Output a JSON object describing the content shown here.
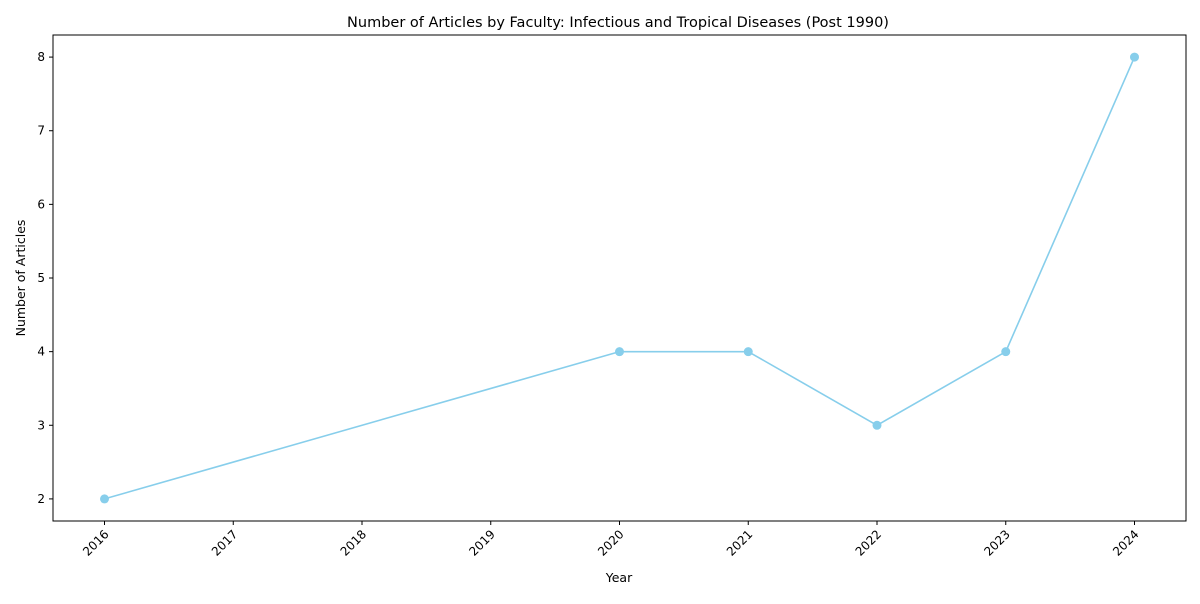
{
  "chart_data": {
    "type": "line",
    "title": "Number of Articles by Faculty: Infectious and Tropical Diseases (Post 1990)",
    "xlabel": "Year",
    "ylabel": "Number of Articles",
    "x_ticks": [
      "2016",
      "2017",
      "2018",
      "2019",
      "2020",
      "2021",
      "2022",
      "2023",
      "2024"
    ],
    "y_ticks": [
      "2",
      "3",
      "4",
      "5",
      "6",
      "7",
      "8"
    ],
    "xlim": [
      2015.6,
      2024.4
    ],
    "ylim": [
      1.7,
      8.3
    ],
    "series": [
      {
        "x": [
          2016,
          2020,
          2021,
          2022,
          2023,
          2024
        ],
        "y": [
          2,
          4,
          4,
          3,
          4,
          8
        ],
        "color": "#87ceeb",
        "marker": "circle"
      }
    ],
    "grid": false,
    "legend": "none"
  }
}
